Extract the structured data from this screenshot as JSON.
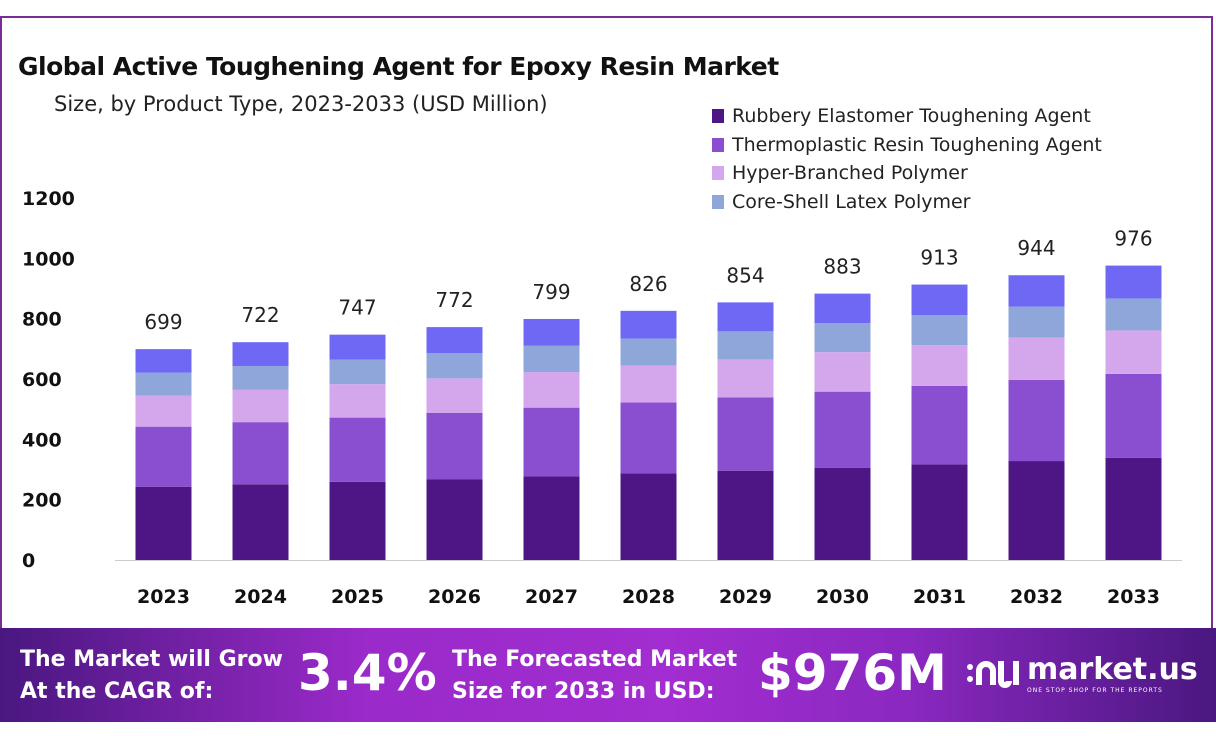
{
  "chart_data": {
    "type": "bar",
    "stacked": true,
    "title": "Global Active Toughening Agent for Epoxy Resin Market",
    "subtitle": "Size, by Product Type, 2023-2033 (USD Million)",
    "categories": [
      "2023",
      "2024",
      "2025",
      "2026",
      "2027",
      "2028",
      "2029",
      "2030",
      "2031",
      "2032",
      "2033"
    ],
    "totals": [
      "699",
      "722",
      "747",
      "772",
      "799",
      "826",
      "854",
      "883",
      "913",
      "944",
      "976"
    ],
    "series": [
      {
        "name": "Rubbery Elastomer Toughening Agent",
        "color": "#4e1684",
        "values": [
          243,
          251,
          259,
          268,
          277,
          287,
          296,
          306,
          317,
          328,
          339
        ]
      },
      {
        "name": "Thermoplastic Resin Toughening Agent",
        "color": "#8a4fd0",
        "values": [
          199,
          206,
          213,
          220,
          228,
          235,
          243,
          252,
          260,
          269,
          278
        ]
      },
      {
        "name": "Hyper-Branched Polymer",
        "color": "#d4a6ec",
        "values": [
          103,
          107,
          111,
          114,
          118,
          122,
          126,
          131,
          135,
          140,
          144
        ]
      },
      {
        "name": "Core-Shell Latex Polymer",
        "color": "#8fa6db",
        "values": [
          76,
          79,
          81,
          84,
          87,
          90,
          93,
          96,
          100,
          103,
          106
        ]
      },
      {
        "color": "#6f68f5",
        "values": [
          78,
          79,
          83,
          86,
          89,
          92,
          96,
          98,
          101,
          104,
          109
        ]
      }
    ],
    "yticks": [
      "0",
      "200",
      "400",
      "600",
      "800",
      "1000",
      "1200"
    ],
    "ylim": [
      0,
      1200
    ],
    "grid": false,
    "legend": "top-right"
  },
  "footer": {
    "cagr_label_1": "The Market will Grow",
    "cagr_label_2": "At the CAGR of:",
    "cagr_value": "3.4%",
    "forecast_label_1": "The Forecasted Market",
    "forecast_label_2": "Size for 2033 in USD:",
    "forecast_value": "$976M",
    "logo_name": "market.us",
    "logo_tagline": "ONE STOP SHOP FOR THE REPORTS"
  }
}
